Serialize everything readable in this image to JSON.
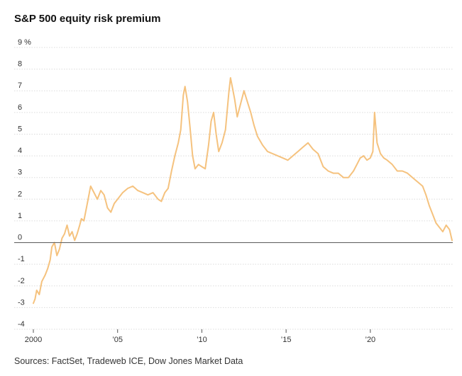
{
  "header": {
    "title": "S&P 500 equity risk premium"
  },
  "footer": {
    "source": "Sources: FactSet, Tradeweb ICE, Dow Jones Market Data"
  },
  "chart_data": {
    "type": "line",
    "title": "S&P 500 equity risk premium",
    "xlabel": "",
    "ylabel": "",
    "ylim": [
      -4,
      9
    ],
    "xlim": [
      2000,
      2024.85
    ],
    "y_ticks": [
      {
        "value": 9,
        "label": "9 %"
      },
      {
        "value": 8,
        "label": "8"
      },
      {
        "value": 7,
        "label": "7"
      },
      {
        "value": 6,
        "label": "6"
      },
      {
        "value": 5,
        "label": "5"
      },
      {
        "value": 4,
        "label": "4"
      },
      {
        "value": 3,
        "label": "3"
      },
      {
        "value": 2,
        "label": "2"
      },
      {
        "value": 1,
        "label": "1"
      },
      {
        "value": 0,
        "label": "0"
      },
      {
        "value": -1,
        "label": "-1"
      },
      {
        "value": -2,
        "label": "-2"
      },
      {
        "value": -3,
        "label": "-3"
      },
      {
        "value": -4,
        "label": "-4"
      }
    ],
    "x_ticks": [
      {
        "value": 2000,
        "label": "2000"
      },
      {
        "value": 2005,
        "label": "’05"
      },
      {
        "value": 2010,
        "label": "’10"
      },
      {
        "value": 2015,
        "label": "’15"
      },
      {
        "value": 2020,
        "label": "’20"
      }
    ],
    "series": [
      {
        "name": "Equity risk premium (%)",
        "color": "#f5c27e",
        "x": [
          2000.0,
          2000.1,
          2000.2,
          2000.35,
          2000.5,
          2000.7,
          2000.85,
          2001.0,
          2001.1,
          2001.25,
          2001.4,
          2001.55,
          2001.7,
          2001.85,
          2002.0,
          2002.15,
          2002.3,
          2002.45,
          2002.6,
          2002.75,
          2002.85,
          2003.0,
          2003.2,
          2003.4,
          2003.6,
          2003.8,
          2004.0,
          2004.2,
          2004.4,
          2004.6,
          2004.8,
          2005.0,
          2005.3,
          2005.6,
          2005.9,
          2006.2,
          2006.5,
          2006.8,
          2007.1,
          2007.4,
          2007.6,
          2007.8,
          2008.0,
          2008.2,
          2008.4,
          2008.6,
          2008.75,
          2008.9,
          2009.0,
          2009.15,
          2009.3,
          2009.45,
          2009.6,
          2009.8,
          2010.0,
          2010.2,
          2010.4,
          2010.55,
          2010.7,
          2010.85,
          2011.0,
          2011.2,
          2011.4,
          2011.6,
          2011.7,
          2011.8,
          2011.95,
          2012.1,
          2012.3,
          2012.5,
          2012.7,
          2012.9,
          2013.1,
          2013.3,
          2013.6,
          2013.9,
          2014.2,
          2014.5,
          2014.8,
          2015.1,
          2015.4,
          2015.7,
          2016.0,
          2016.3,
          2016.6,
          2016.9,
          2017.2,
          2017.5,
          2017.8,
          2018.1,
          2018.4,
          2018.7,
          2019.0,
          2019.2,
          2019.4,
          2019.6,
          2019.8,
          2020.0,
          2020.15,
          2020.25,
          2020.4,
          2020.6,
          2020.8,
          2021.0,
          2021.3,
          2021.6,
          2021.9,
          2022.2,
          2022.5,
          2022.8,
          2023.1,
          2023.3,
          2023.5,
          2023.7,
          2023.9,
          2024.1,
          2024.3,
          2024.5,
          2024.7,
          2024.85
        ],
        "values": [
          -2.8,
          -2.6,
          -2.2,
          -2.4,
          -1.8,
          -1.5,
          -1.2,
          -0.8,
          -0.2,
          0.0,
          -0.6,
          -0.3,
          0.2,
          0.4,
          0.8,
          0.3,
          0.5,
          0.1,
          0.4,
          0.8,
          1.1,
          1.0,
          1.8,
          2.6,
          2.3,
          2.0,
          2.4,
          2.2,
          1.6,
          1.4,
          1.8,
          2.0,
          2.3,
          2.5,
          2.6,
          2.4,
          2.3,
          2.2,
          2.3,
          2.0,
          1.9,
          2.3,
          2.5,
          3.3,
          4.0,
          4.6,
          5.2,
          6.8,
          7.2,
          6.5,
          5.3,
          4.0,
          3.4,
          3.6,
          3.5,
          3.4,
          4.5,
          5.6,
          6.0,
          5.0,
          4.2,
          4.6,
          5.2,
          6.9,
          7.6,
          7.2,
          6.6,
          5.8,
          6.4,
          7.0,
          6.5,
          6.0,
          5.4,
          4.9,
          4.5,
          4.2,
          4.1,
          4.0,
          3.9,
          3.8,
          4.0,
          4.2,
          4.4,
          4.6,
          4.3,
          4.1,
          3.5,
          3.3,
          3.2,
          3.2,
          3.0,
          3.0,
          3.3,
          3.6,
          3.9,
          4.0,
          3.8,
          3.9,
          4.2,
          6.0,
          4.6,
          4.1,
          3.9,
          3.8,
          3.6,
          3.3,
          3.3,
          3.2,
          3.0,
          2.8,
          2.6,
          2.2,
          1.7,
          1.3,
          0.9,
          0.7,
          0.5,
          0.8,
          0.6,
          0.1
        ]
      }
    ]
  }
}
